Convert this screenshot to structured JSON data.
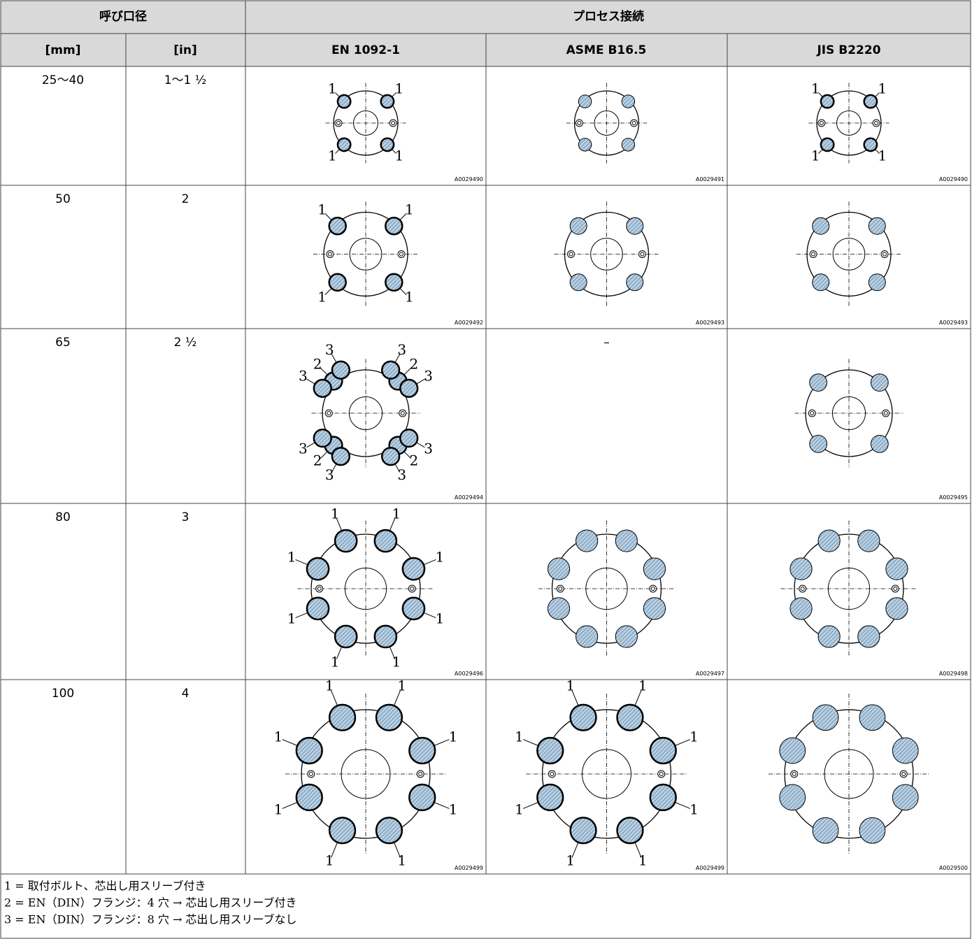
{
  "header": {
    "nominal_diameter": "呼び口径",
    "process_connection": "プロセス接続",
    "units": [
      "[mm]",
      "[in]"
    ],
    "standards": [
      "EN 1092-1",
      "ASME B16.5",
      "JIS B2220"
    ]
  },
  "table": {
    "rows": [
      {
        "mm": "25～40",
        "in": "1～1 ½",
        "cells": [
          {
            "code": "A0029490",
            "callouts": [
              "1",
              "1",
              "1",
              "1"
            ]
          },
          {
            "code": "A0029491"
          },
          {
            "code": "A0029490",
            "callouts": [
              "1",
              "1",
              "1",
              "1"
            ]
          }
        ]
      },
      {
        "mm": "50",
        "in": "2",
        "cells": [
          {
            "code": "A0029492",
            "callouts": [
              "1",
              "1",
              "1",
              "1"
            ]
          },
          {
            "code": "A0029493"
          },
          {
            "code": "A0029493"
          }
        ]
      },
      {
        "mm": "65",
        "in": "2 ½",
        "cells": [
          {
            "code": "A0029494",
            "callouts": [
              "2",
              "2",
              "2",
              "2",
              "3",
              "3",
              "3",
              "3",
              "3",
              "3",
              "3",
              "3"
            ]
          },
          {
            "text": "–"
          },
          {
            "code": "A0029495"
          }
        ]
      },
      {
        "mm": "80",
        "in": "3",
        "cells": [
          {
            "code": "A0029496",
            "callouts": [
              "1",
              "1",
              "1",
              "1",
              "1",
              "1",
              "1",
              "1"
            ]
          },
          {
            "code": "A0029497"
          },
          {
            "code": "A0029498"
          }
        ]
      },
      {
        "mm": "100",
        "in": "4",
        "cells": [
          {
            "code": "A0029499",
            "callouts": [
              "1",
              "1",
              "1",
              "1",
              "1",
              "1",
              "1",
              "1"
            ]
          },
          {
            "code": "A0029499",
            "callouts": [
              "1",
              "1",
              "1",
              "1",
              "1",
              "1",
              "1",
              "1"
            ]
          },
          {
            "code": "A0029500"
          }
        ]
      }
    ]
  },
  "footer": {
    "notes": [
      "1 = 取付ボルト、芯出し用スリーブ付き",
      "2 = EN（DIN）フランジ：4 穴 → 芯出し用スリーブ付き",
      "3 = EN（DIN）フランジ：8 穴 → 芯出し用スリーブなし"
    ]
  }
}
